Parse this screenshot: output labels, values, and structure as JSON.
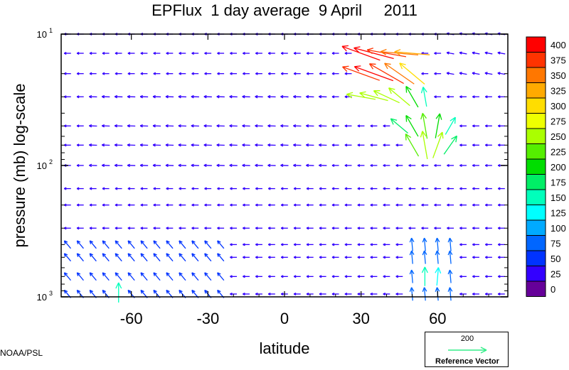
{
  "title": "EPFlux  1 day average  9 April     2011",
  "credit": "NOAA/PSL",
  "reference": {
    "value": "200",
    "label": "Reference Vector",
    "color": "#33ee88"
  },
  "chart_data": {
    "type": "vector-field",
    "title": "EPFlux  1 day average  9 April     2011",
    "xlabel": "latitude",
    "ylabel": "pressure (mb)  log-scale",
    "x_ticks": [
      "-60",
      "-30",
      "0",
      "30",
      "60"
    ],
    "x_tick_values": [
      -60,
      -30,
      0,
      30,
      60
    ],
    "y_ticks": [
      {
        "base": "10",
        "exp": "1",
        "value": 10
      },
      {
        "base": "10",
        "exp": "2",
        "value": 100
      },
      {
        "base": "10",
        "exp": "3",
        "value": 1000
      }
    ],
    "xlim": [
      -87.5,
      87.5
    ],
    "ylim": [
      1000,
      10
    ],
    "y_scale": "log",
    "grid": false,
    "colorbar": {
      "labels": [
        "400",
        "375",
        "350",
        "325",
        "300",
        "275",
        "250",
        "225",
        "200",
        "175",
        "150",
        "125",
        "100",
        "75",
        "50",
        "25",
        "0"
      ],
      "colors": [
        "#ff0000",
        "#ff3300",
        "#ff7700",
        "#ffaa00",
        "#ffdd00",
        "#eeff00",
        "#aaff00",
        "#55ee00",
        "#00dd00",
        "#00ee66",
        "#00ffbb",
        "#00ffff",
        "#00aaff",
        "#0066ff",
        "#0033ff",
        "#3300ff",
        "#660099"
      ]
    },
    "levels_mb": [
      10,
      14,
      20,
      30,
      50,
      70,
      100,
      150,
      200,
      300,
      400,
      500,
      700,
      1000
    ],
    "highlighted_vectors": [
      {
        "lat": 30,
        "p": 14,
        "dir_deg": 160,
        "magnitude": 390
      },
      {
        "lat": 35,
        "p": 14,
        "dir_deg": 165,
        "magnitude": 400
      },
      {
        "lat": 40,
        "p": 14,
        "dir_deg": 170,
        "magnitude": 380
      },
      {
        "lat": 45,
        "p": 14,
        "dir_deg": 175,
        "magnitude": 360
      },
      {
        "lat": 50,
        "p": 14,
        "dir_deg": 175,
        "magnitude": 330
      },
      {
        "lat": 30,
        "p": 20,
        "dir_deg": 160,
        "magnitude": 380
      },
      {
        "lat": 35,
        "p": 20,
        "dir_deg": 160,
        "magnitude": 400
      },
      {
        "lat": 40,
        "p": 20,
        "dir_deg": 150,
        "magnitude": 380
      },
      {
        "lat": 45,
        "p": 20,
        "dir_deg": 145,
        "magnitude": 340
      },
      {
        "lat": 50,
        "p": 20,
        "dir_deg": 140,
        "magnitude": 300
      },
      {
        "lat": 30,
        "p": 30,
        "dir_deg": 170,
        "magnitude": 260
      },
      {
        "lat": 35,
        "p": 30,
        "dir_deg": 165,
        "magnitude": 260
      },
      {
        "lat": 40,
        "p": 30,
        "dir_deg": 155,
        "magnitude": 250
      },
      {
        "lat": 45,
        "p": 30,
        "dir_deg": 140,
        "magnitude": 240
      },
      {
        "lat": 50,
        "p": 30,
        "dir_deg": 120,
        "magnitude": 200
      },
      {
        "lat": 55,
        "p": 30,
        "dir_deg": 100,
        "magnitude": 150
      },
      {
        "lat": 45,
        "p": 50,
        "dir_deg": 140,
        "magnitude": 180
      },
      {
        "lat": 50,
        "p": 50,
        "dir_deg": 120,
        "magnitude": 200
      },
      {
        "lat": 55,
        "p": 50,
        "dir_deg": 100,
        "magnitude": 220
      },
      {
        "lat": 60,
        "p": 50,
        "dir_deg": 80,
        "magnitude": 210
      },
      {
        "lat": 65,
        "p": 50,
        "dir_deg": 60,
        "magnitude": 150
      },
      {
        "lat": 50,
        "p": 70,
        "dir_deg": 120,
        "magnitude": 220
      },
      {
        "lat": 55,
        "p": 70,
        "dir_deg": 100,
        "magnitude": 250
      },
      {
        "lat": 60,
        "p": 70,
        "dir_deg": 70,
        "magnitude": 240
      },
      {
        "lat": 65,
        "p": 70,
        "dir_deg": 55,
        "magnitude": 180
      },
      {
        "lat": 55,
        "p": 700,
        "dir_deg": 90,
        "magnitude": 140
      },
      {
        "lat": 60,
        "p": 700,
        "dir_deg": 85,
        "magnitude": 130
      },
      {
        "lat": -65,
        "p": 1000,
        "dir_deg": 90,
        "magnitude": 150
      }
    ]
  }
}
